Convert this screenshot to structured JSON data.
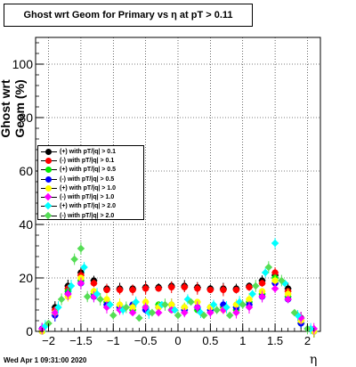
{
  "title": "Ghost wrt Geom for Primary vs   η at pT > 0.11",
  "timestamp": "Wed Apr  1 09:31:00 2020",
  "chart_data": {
    "type": "scatter",
    "xlabel": "η",
    "ylabel": "Ghost wrt Geom (%)",
    "xlim": [
      -2.2,
      2.2
    ],
    "ylim": [
      0,
      110
    ],
    "xticks": [
      -2,
      -1.5,
      -1,
      -0.5,
      0,
      0.5,
      1,
      1.5,
      2
    ],
    "xtick_labels": [
      "−2",
      "−1.5",
      "−1",
      "−0.5",
      "0",
      "0.5",
      "1",
      "1.5",
      "2"
    ],
    "yticks": [
      0,
      20,
      40,
      60,
      80,
      100
    ],
    "grid": true,
    "legend_position": "left",
    "series": [
      {
        "name": "(+) with pT/|q| > 0.1",
        "color": "#000000",
        "marker": "circle",
        "x": [
          -2.1,
          -1.9,
          -1.7,
          -1.5,
          -1.3,
          -1.1,
          -0.9,
          -0.7,
          -0.5,
          -0.3,
          -0.1,
          0.1,
          0.3,
          0.5,
          0.7,
          0.9,
          1.1,
          1.3,
          1.5,
          1.7,
          1.9,
          2.1
        ],
        "y": [
          0,
          9,
          17,
          22,
          19,
          16,
          16,
          16,
          16.5,
          16.5,
          17,
          17,
          16.5,
          16,
          16,
          16,
          17,
          19,
          21,
          16,
          5,
          0
        ]
      },
      {
        "name": "(-) with pT/|q| > 0.1",
        "color": "#ff0000",
        "marker": "circle",
        "x": [
          -2.1,
          -1.9,
          -1.7,
          -1.5,
          -1.3,
          -1.1,
          -0.9,
          -0.7,
          -0.5,
          -0.3,
          -0.1,
          0.1,
          0.3,
          0.5,
          0.7,
          0.9,
          1.1,
          1.3,
          1.5,
          1.7,
          1.9,
          2.1
        ],
        "y": [
          0,
          8,
          16,
          21,
          18,
          15.5,
          15.5,
          15.5,
          16,
          16,
          16.5,
          16.5,
          16,
          15.5,
          15.5,
          15.5,
          16.5,
          18,
          22,
          15,
          4,
          0
        ]
      },
      {
        "name": "(+) with pT/|q| > 0.5",
        "color": "#00ee00",
        "marker": "circle",
        "x": [
          -2.1,
          -1.9,
          -1.7,
          -1.5,
          -1.3,
          -1.1,
          -0.9,
          -0.7,
          -0.5,
          -0.3,
          -0.1,
          0.1,
          0.3,
          0.5,
          0.7,
          0.9,
          1.1,
          1.3,
          1.5,
          1.7,
          1.9,
          2.1
        ],
        "y": [
          0,
          7,
          15,
          19,
          14,
          11,
          9,
          8,
          9,
          10,
          8,
          9,
          8,
          9,
          9,
          8,
          11,
          14,
          20,
          13,
          3,
          0
        ]
      },
      {
        "name": "(-) with pT/|q| > 0.5",
        "color": "#0000ff",
        "marker": "circle",
        "x": [
          -2.1,
          -1.9,
          -1.7,
          -1.5,
          -1.3,
          -1.1,
          -0.9,
          -0.7,
          -0.5,
          -0.3,
          -0.1,
          0.1,
          0.3,
          0.5,
          0.7,
          0.9,
          1.1,
          1.3,
          1.5,
          1.7,
          1.9,
          2.1
        ],
        "y": [
          1,
          6,
          14,
          18,
          13,
          10,
          9,
          10,
          8,
          9,
          10,
          8,
          9,
          8,
          10,
          9,
          10,
          13,
          18,
          12,
          3,
          0
        ]
      },
      {
        "name": "(+) with pT/|q| > 1.0",
        "color": "#ffff00",
        "marker": "circle",
        "x": [
          -2.1,
          -1.9,
          -1.7,
          -1.5,
          -1.3,
          -1.1,
          -0.9,
          -0.7,
          -0.5,
          -0.3,
          -0.1,
          0.1,
          0.3,
          0.5,
          0.7,
          0.9,
          1.1,
          1.3,
          1.5,
          1.7,
          1.9,
          2.1
        ],
        "y": [
          0,
          7,
          13,
          20,
          15,
          12,
          10,
          9,
          11,
          9,
          10,
          9,
          11,
          9,
          8,
          10,
          12,
          15,
          19,
          14,
          4,
          0
        ]
      },
      {
        "name": "(-) with pT/|q| > 1.0",
        "color": "#ff00ff",
        "marker": "diamond",
        "x": [
          -2.1,
          -1.9,
          -1.7,
          -1.5,
          -1.3,
          -1.1,
          -0.9,
          -0.7,
          -0.5,
          -0.3,
          -0.1,
          0.1,
          0.3,
          0.5,
          0.7,
          0.9,
          1.1,
          1.3,
          1.5,
          1.7,
          1.9,
          2.1
        ],
        "y": [
          1,
          7,
          14,
          18,
          13,
          9,
          8,
          7,
          9,
          7,
          8,
          7,
          9,
          7,
          8,
          7,
          9,
          13,
          16,
          12,
          5,
          1
        ]
      },
      {
        "name": "(+) with pT/|q| > 2.0",
        "color": "#00ffff",
        "marker": "diamond",
        "x": [
          -2.05,
          -1.85,
          -1.65,
          -1.45,
          -1.25,
          -1.05,
          -0.85,
          -0.65,
          -0.45,
          -0.25,
          -0.05,
          0.15,
          0.35,
          0.55,
          0.75,
          0.95,
          1.15,
          1.35,
          1.5,
          1.65,
          1.85,
          2.05
        ],
        "y": [
          2,
          9,
          17,
          24,
          14,
          10,
          8,
          11,
          7,
          10,
          8,
          12,
          7,
          10,
          9,
          11,
          14,
          22,
          33,
          18,
          6,
          1
        ]
      },
      {
        "name": "(-) with pT/|q| > 2.0",
        "color": "#55dd55",
        "marker": "diamond",
        "x": [
          -2.0,
          -1.8,
          -1.6,
          -1.5,
          -1.4,
          -1.2,
          -1.0,
          -0.8,
          -0.6,
          -0.4,
          -0.2,
          0.0,
          0.2,
          0.4,
          0.6,
          0.8,
          1.0,
          1.2,
          1.4,
          1.6,
          1.8,
          2.0
        ],
        "y": [
          3,
          12,
          27,
          31,
          13,
          12,
          6,
          9,
          5,
          7,
          10,
          6,
          11,
          6,
          8,
          6,
          10,
          17,
          24,
          19,
          7,
          1
        ]
      }
    ]
  }
}
